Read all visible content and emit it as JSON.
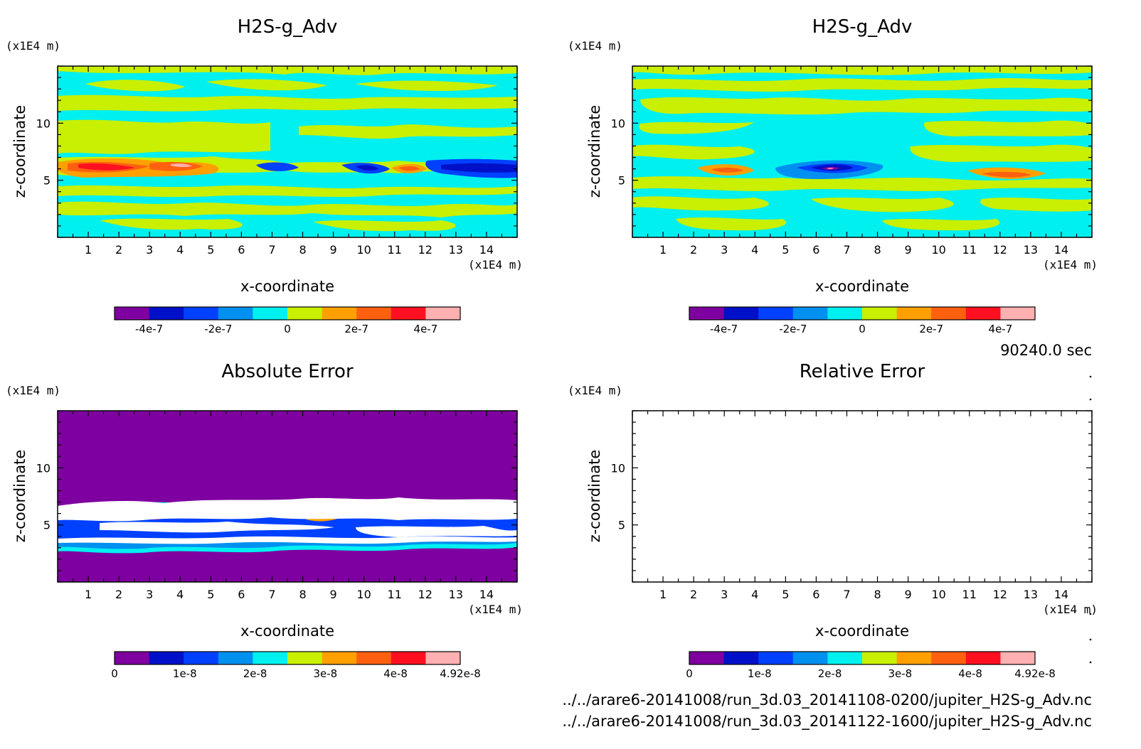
{
  "chart_data": [
    {
      "type": "heatmap",
      "title": "H2S-g_Adv",
      "xlabel": "x-coordinate",
      "ylabel": "z-coordinate",
      "x_unit": "(x1E4 m)",
      "y_unit": "(x1E4 m)",
      "xlim": [
        0,
        15
      ],
      "ylim": [
        0,
        15
      ],
      "x_ticks": [
        1,
        2,
        3,
        4,
        5,
        6,
        7,
        8,
        9,
        10,
        11,
        12,
        13,
        14
      ],
      "y_ticks": [
        5,
        10
      ],
      "colorbar": {
        "colors": [
          "#7f00a0",
          "#0010c8",
          "#0040ff",
          "#0090f0",
          "#00f0f0",
          "#c8f000",
          "#ffa000",
          "#ff6010",
          "#ff1020",
          "#ffb0b0"
        ],
        "tick_labels": [
          "-4e-7",
          "-2e-7",
          "0",
          "2e-7",
          "4e-7"
        ],
        "tick_values": [
          -4e-07,
          -2e-07,
          0,
          2e-07,
          4e-07
        ],
        "range": [
          -5e-07,
          5e-07
        ]
      }
    },
    {
      "type": "heatmap",
      "title": "H2S-g_Adv",
      "xlabel": "x-coordinate",
      "ylabel": "z-coordinate",
      "x_unit": "(x1E4 m)",
      "y_unit": "(x1E4 m)",
      "xlim": [
        0,
        15
      ],
      "ylim": [
        0,
        15
      ],
      "x_ticks": [
        1,
        2,
        3,
        4,
        5,
        6,
        7,
        8,
        9,
        10,
        11,
        12,
        13,
        14
      ],
      "y_ticks": [
        5,
        10
      ],
      "colorbar": {
        "colors": [
          "#7f00a0",
          "#0010c8",
          "#0040ff",
          "#0090f0",
          "#00f0f0",
          "#c8f000",
          "#ffa000",
          "#ff6010",
          "#ff1020",
          "#ffb0b0"
        ],
        "tick_labels": [
          "-4e-7",
          "-2e-7",
          "0",
          "2e-7",
          "4e-7"
        ],
        "tick_values": [
          -4e-07,
          -2e-07,
          0,
          2e-07,
          4e-07
        ],
        "range": [
          -5e-07,
          5e-07
        ]
      }
    },
    {
      "type": "heatmap",
      "title": "Absolute Error",
      "xlabel": "x-coordinate",
      "ylabel": "z-coordinate",
      "x_unit": "(x1E4 m)",
      "y_unit": "(x1E4 m)",
      "xlim": [
        0,
        15
      ],
      "ylim": [
        0,
        15
      ],
      "x_ticks": [
        1,
        2,
        3,
        4,
        5,
        6,
        7,
        8,
        9,
        10,
        11,
        12,
        13,
        14
      ],
      "y_ticks": [
        5,
        10
      ],
      "colorbar": {
        "colors": [
          "#7f00a0",
          "#0010c8",
          "#0040ff",
          "#0090f0",
          "#00f0f0",
          "#c8f000",
          "#ffa000",
          "#ff6010",
          "#ff1020",
          "#ffb0b0"
        ],
        "tick_labels": [
          "0",
          "1e-8",
          "2e-8",
          "3e-8",
          "4e-8",
          "4.92e-8"
        ],
        "tick_values": [
          0,
          1e-08,
          2e-08,
          3e-08,
          4e-08,
          4.92e-08
        ],
        "range": [
          0,
          4.92e-08
        ]
      }
    },
    {
      "type": "heatmap",
      "title": "Relative Error",
      "xlabel": "x-coordinate",
      "ylabel": "z-coordinate",
      "x_unit": "(x1E4 m)",
      "y_unit": "(x1E4 m)",
      "xlim": [
        0,
        15
      ],
      "ylim": [
        0,
        15
      ],
      "x_ticks": [
        1,
        2,
        3,
        4,
        5,
        6,
        7,
        8,
        9,
        10,
        11,
        12,
        13,
        14
      ],
      "y_ticks": [
        5,
        10
      ],
      "colorbar": {
        "colors": [
          "#7f00a0",
          "#0010c8",
          "#0040ff",
          "#0090f0",
          "#00f0f0",
          "#c8f000",
          "#ffa000",
          "#ff6010",
          "#ff1020",
          "#ffb0b0"
        ],
        "tick_labels": [
          "0",
          "1e-8",
          "2e-8",
          "3e-8",
          "4e-8",
          "4.92e-8"
        ],
        "tick_values": [
          0,
          1e-08,
          2e-08,
          3e-08,
          4e-08,
          4.92e-08
        ],
        "range": [
          0,
          4.92e-08
        ]
      }
    }
  ],
  "time_label": "90240.0 sec",
  "file_paths": [
    "../../arare6-20141008/run_3d.03_20141108-0200/jupiter_H2S-g_Adv.nc",
    "../../arare6-20141008/run_3d.03_20141122-1600/jupiter_H2S-g_Adv.nc"
  ]
}
